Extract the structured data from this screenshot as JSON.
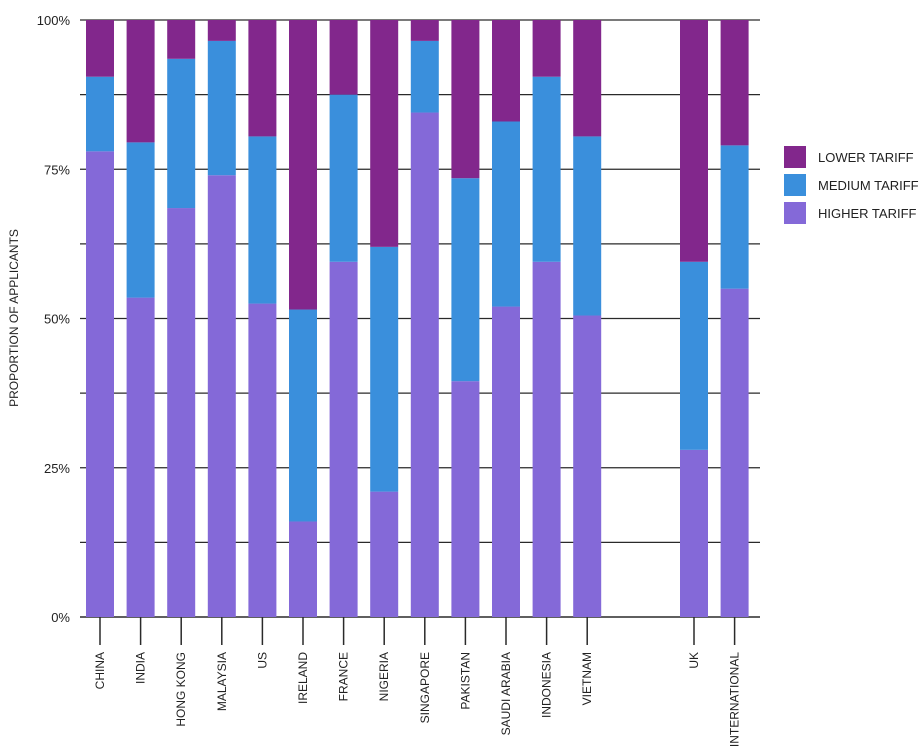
{
  "chart_data": {
    "type": "bar",
    "stacked": true,
    "ylabel": "PROPORTION OF APPLICANTS",
    "ylim": [
      0,
      100
    ],
    "yticks": [
      "0%",
      "25%",
      "50%",
      "75%",
      "100%"
    ],
    "grid": true,
    "legend_position": "right",
    "categories": [
      "CHINA",
      "INDIA",
      "HONG KONG",
      "MALAYSIA",
      "US",
      "IRELAND",
      "FRANCE",
      "NIGERIA",
      "SINGAPORE",
      "PAKISTAN",
      "SAUDI ARABIA",
      "INDONESIA",
      "VIETNAM",
      "UK",
      "INTERNATIONAL"
    ],
    "series": [
      {
        "name": "HIGHER TARIFF",
        "color": "#8469d8",
        "values": [
          78,
          53.5,
          68.5,
          74,
          52.5,
          16,
          59.5,
          21,
          84.5,
          39.5,
          52,
          59.5,
          50.5,
          28,
          55
        ]
      },
      {
        "name": "MEDIUM TARIFF",
        "color": "#3a8fdc",
        "values": [
          12.5,
          26,
          25,
          22.5,
          28,
          35.5,
          28,
          41,
          12,
          34,
          31,
          31,
          30,
          31.5,
          24
        ]
      },
      {
        "name": "LOWER TARIFF",
        "color": "#82278c",
        "values": [
          9.5,
          20.5,
          6.5,
          3.5,
          19.5,
          48.5,
          12.5,
          38,
          3.5,
          26.5,
          17,
          9.5,
          19.5,
          40.5,
          21
        ]
      }
    ],
    "legend_order": [
      "LOWER TARIFF",
      "MEDIUM TARIFF",
      "HIGHER TARIFF"
    ]
  }
}
